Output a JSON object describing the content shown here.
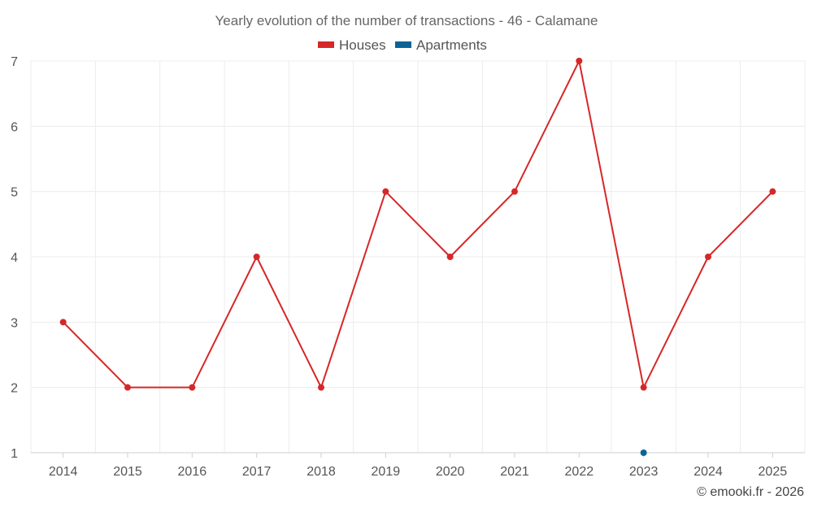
{
  "chart_data": {
    "type": "line",
    "title": "Yearly evolution of the number of transactions - 46 - Calamane",
    "xlabel": "",
    "ylabel": "",
    "categories": [
      "2014",
      "2015",
      "2016",
      "2017",
      "2018",
      "2019",
      "2020",
      "2021",
      "2022",
      "2023",
      "2024",
      "2025"
    ],
    "ylim": [
      1,
      7
    ],
    "yticks": [
      1,
      2,
      3,
      4,
      5,
      6,
      7
    ],
    "grid": true,
    "legend_position": "top-center",
    "series": [
      {
        "name": "Houses",
        "color": "#d62728",
        "values": [
          3,
          2,
          2,
          4,
          2,
          5,
          4,
          5,
          7,
          2,
          4,
          5
        ]
      },
      {
        "name": "Apartments",
        "color": "#0b6396",
        "values": [
          null,
          null,
          null,
          null,
          null,
          null,
          null,
          null,
          null,
          1,
          null,
          null
        ]
      }
    ]
  },
  "credit": "© emooki.fr - 2026"
}
